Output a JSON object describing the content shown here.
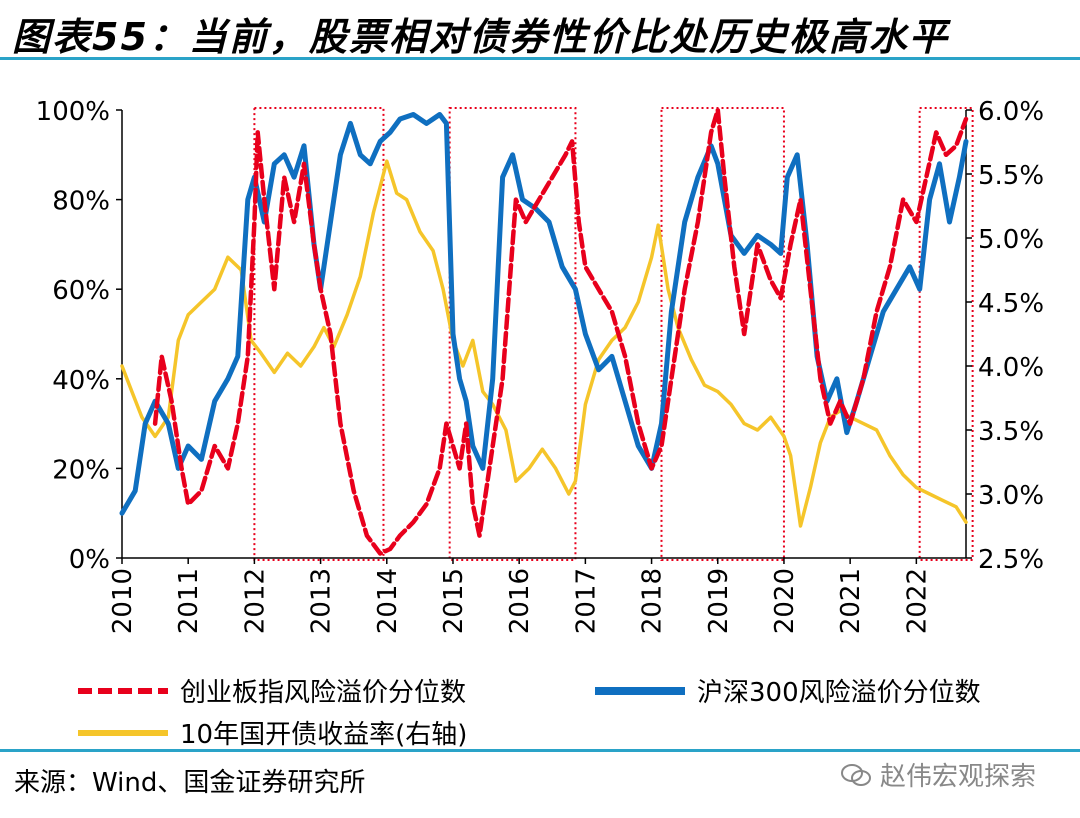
{
  "header": {
    "title": "图表55：当前，股票相对债券性价比处历史极高水平"
  },
  "source": "来源：Wind、国金证券研究所",
  "watermark": "赵伟宏观探索",
  "colors": {
    "red": "#e8001c",
    "blue": "#0f6fc0",
    "yellow": "#f5c52a",
    "box": "#e8001c"
  },
  "chart_data": {
    "type": "line",
    "x_ticks": [
      "2010",
      "2011",
      "2012",
      "2013",
      "2014",
      "2015",
      "2016",
      "2017",
      "2018",
      "2019",
      "2020",
      "2021",
      "2022"
    ],
    "y_left": {
      "ticks": [
        "0%",
        "20%",
        "40%",
        "60%",
        "80%",
        "100%"
      ],
      "range": [
        0,
        100
      ]
    },
    "y_right": {
      "ticks": [
        "2.5%",
        "3.0%",
        "3.5%",
        "4.0%",
        "4.5%",
        "5.0%",
        "5.5%",
        "6.0%"
      ],
      "range": [
        2.5,
        6.0
      ]
    },
    "x_range": [
      2010.0,
      2022.75
    ],
    "highlight_periods": [
      [
        2012.0,
        2013.95
      ],
      [
        2014.95,
        2016.85
      ],
      [
        2018.15,
        2020.0
      ],
      [
        2022.05,
        2022.85
      ]
    ],
    "series": [
      {
        "name": "创业板指风险溢价分位数",
        "axis": "left",
        "style": "dashed",
        "points": [
          [
            2010.5,
            30
          ],
          [
            2010.6,
            45
          ],
          [
            2010.75,
            35
          ],
          [
            2010.9,
            20
          ],
          [
            2011.0,
            12
          ],
          [
            2011.2,
            15
          ],
          [
            2011.4,
            25
          ],
          [
            2011.6,
            20
          ],
          [
            2011.75,
            30
          ],
          [
            2011.9,
            45
          ],
          [
            2012.0,
            75
          ],
          [
            2012.05,
            95
          ],
          [
            2012.15,
            80
          ],
          [
            2012.3,
            60
          ],
          [
            2012.45,
            85
          ],
          [
            2012.6,
            75
          ],
          [
            2012.75,
            88
          ],
          [
            2012.9,
            70
          ],
          [
            2013.0,
            60
          ],
          [
            2013.15,
            50
          ],
          [
            2013.3,
            30
          ],
          [
            2013.5,
            15
          ],
          [
            2013.7,
            5
          ],
          [
            2013.9,
            1
          ],
          [
            2014.05,
            2
          ],
          [
            2014.2,
            5
          ],
          [
            2014.4,
            8
          ],
          [
            2014.6,
            12
          ],
          [
            2014.8,
            20
          ],
          [
            2014.9,
            30
          ],
          [
            2015.0,
            25
          ],
          [
            2015.1,
            20
          ],
          [
            2015.2,
            30
          ],
          [
            2015.3,
            12
          ],
          [
            2015.4,
            5
          ],
          [
            2015.5,
            15
          ],
          [
            2015.6,
            25
          ],
          [
            2015.75,
            40
          ],
          [
            2015.85,
            60
          ],
          [
            2015.95,
            80
          ],
          [
            2016.1,
            75
          ],
          [
            2016.3,
            80
          ],
          [
            2016.5,
            85
          ],
          [
            2016.7,
            90
          ],
          [
            2016.8,
            93
          ],
          [
            2016.9,
            75
          ],
          [
            2017.0,
            65
          ],
          [
            2017.2,
            60
          ],
          [
            2017.4,
            55
          ],
          [
            2017.6,
            45
          ],
          [
            2017.8,
            30
          ],
          [
            2018.0,
            20
          ],
          [
            2018.15,
            25
          ],
          [
            2018.3,
            40
          ],
          [
            2018.5,
            60
          ],
          [
            2018.7,
            75
          ],
          [
            2018.9,
            95
          ],
          [
            2019.0,
            100
          ],
          [
            2019.1,
            85
          ],
          [
            2019.25,
            65
          ],
          [
            2019.4,
            50
          ],
          [
            2019.6,
            70
          ],
          [
            2019.8,
            62
          ],
          [
            2019.95,
            58
          ],
          [
            2020.1,
            70
          ],
          [
            2020.25,
            80
          ],
          [
            2020.4,
            60
          ],
          [
            2020.55,
            40
          ],
          [
            2020.7,
            30
          ],
          [
            2020.85,
            35
          ],
          [
            2021.0,
            30
          ],
          [
            2021.2,
            40
          ],
          [
            2021.4,
            55
          ],
          [
            2021.6,
            65
          ],
          [
            2021.8,
            80
          ],
          [
            2022.0,
            75
          ],
          [
            2022.15,
            85
          ],
          [
            2022.3,
            95
          ],
          [
            2022.45,
            90
          ],
          [
            2022.6,
            92
          ],
          [
            2022.75,
            98
          ]
        ]
      },
      {
        "name": "沪深300风险溢价分位数",
        "axis": "left",
        "style": "solid",
        "points": [
          [
            2010.0,
            10
          ],
          [
            2010.2,
            15
          ],
          [
            2010.35,
            30
          ],
          [
            2010.5,
            35
          ],
          [
            2010.7,
            30
          ],
          [
            2010.85,
            20
          ],
          [
            2011.0,
            25
          ],
          [
            2011.2,
            22
          ],
          [
            2011.4,
            35
          ],
          [
            2011.6,
            40
          ],
          [
            2011.75,
            45
          ],
          [
            2011.9,
            80
          ],
          [
            2012.0,
            85
          ],
          [
            2012.15,
            75
          ],
          [
            2012.3,
            88
          ],
          [
            2012.45,
            90
          ],
          [
            2012.6,
            85
          ],
          [
            2012.75,
            92
          ],
          [
            2012.9,
            70
          ],
          [
            2013.0,
            60
          ],
          [
            2013.15,
            75
          ],
          [
            2013.3,
            90
          ],
          [
            2013.45,
            97
          ],
          [
            2013.6,
            90
          ],
          [
            2013.75,
            88
          ],
          [
            2013.9,
            93
          ],
          [
            2014.05,
            95
          ],
          [
            2014.2,
            98
          ],
          [
            2014.4,
            99
          ],
          [
            2014.6,
            97
          ],
          [
            2014.8,
            99
          ],
          [
            2014.9,
            97
          ],
          [
            2015.0,
            50
          ],
          [
            2015.1,
            40
          ],
          [
            2015.2,
            35
          ],
          [
            2015.3,
            25
          ],
          [
            2015.45,
            20
          ],
          [
            2015.6,
            40
          ],
          [
            2015.75,
            85
          ],
          [
            2015.9,
            90
          ],
          [
            2016.05,
            80
          ],
          [
            2016.25,
            78
          ],
          [
            2016.45,
            75
          ],
          [
            2016.65,
            65
          ],
          [
            2016.85,
            60
          ],
          [
            2017.0,
            50
          ],
          [
            2017.2,
            42
          ],
          [
            2017.4,
            45
          ],
          [
            2017.6,
            35
          ],
          [
            2017.8,
            25
          ],
          [
            2018.0,
            20
          ],
          [
            2018.15,
            30
          ],
          [
            2018.3,
            55
          ],
          [
            2018.5,
            75
          ],
          [
            2018.7,
            85
          ],
          [
            2018.9,
            92
          ],
          [
            2019.0,
            88
          ],
          [
            2019.2,
            72
          ],
          [
            2019.4,
            68
          ],
          [
            2019.6,
            72
          ],
          [
            2019.8,
            70
          ],
          [
            2019.95,
            68
          ],
          [
            2020.05,
            85
          ],
          [
            2020.2,
            90
          ],
          [
            2020.35,
            70
          ],
          [
            2020.5,
            45
          ],
          [
            2020.65,
            35
          ],
          [
            2020.8,
            40
          ],
          [
            2020.95,
            28
          ],
          [
            2021.1,
            35
          ],
          [
            2021.3,
            45
          ],
          [
            2021.5,
            55
          ],
          [
            2021.7,
            60
          ],
          [
            2021.9,
            65
          ],
          [
            2022.05,
            60
          ],
          [
            2022.2,
            80
          ],
          [
            2022.35,
            88
          ],
          [
            2022.5,
            75
          ],
          [
            2022.65,
            85
          ],
          [
            2022.75,
            93
          ]
        ]
      },
      {
        "name": "10年国开债收益率(右轴)",
        "axis": "right",
        "style": "solid",
        "points": [
          [
            2010.0,
            4.0
          ],
          [
            2010.15,
            3.8
          ],
          [
            2010.3,
            3.6
          ],
          [
            2010.5,
            3.45
          ],
          [
            2010.7,
            3.6
          ],
          [
            2010.85,
            4.2
          ],
          [
            2011.0,
            4.4
          ],
          [
            2011.2,
            4.5
          ],
          [
            2011.4,
            4.6
          ],
          [
            2011.6,
            4.85
          ],
          [
            2011.8,
            4.75
          ],
          [
            2011.95,
            4.2
          ],
          [
            2012.1,
            4.1
          ],
          [
            2012.3,
            3.95
          ],
          [
            2012.5,
            4.1
          ],
          [
            2012.7,
            4.0
          ],
          [
            2012.9,
            4.15
          ],
          [
            2013.05,
            4.3
          ],
          [
            2013.2,
            4.15
          ],
          [
            2013.4,
            4.4
          ],
          [
            2013.6,
            4.7
          ],
          [
            2013.8,
            5.2
          ],
          [
            2014.0,
            5.6
          ],
          [
            2014.15,
            5.35
          ],
          [
            2014.3,
            5.3
          ],
          [
            2014.5,
            5.05
          ],
          [
            2014.7,
            4.9
          ],
          [
            2014.85,
            4.6
          ],
          [
            2015.0,
            4.2
          ],
          [
            2015.15,
            4.0
          ],
          [
            2015.3,
            4.2
          ],
          [
            2015.45,
            3.8
          ],
          [
            2015.6,
            3.7
          ],
          [
            2015.8,
            3.5
          ],
          [
            2015.95,
            3.1
          ],
          [
            2016.15,
            3.2
          ],
          [
            2016.35,
            3.35
          ],
          [
            2016.55,
            3.2
          ],
          [
            2016.75,
            3.0
          ],
          [
            2016.85,
            3.1
          ],
          [
            2017.0,
            3.7
          ],
          [
            2017.2,
            4.05
          ],
          [
            2017.4,
            4.2
          ],
          [
            2017.6,
            4.3
          ],
          [
            2017.8,
            4.5
          ],
          [
            2018.0,
            4.85
          ],
          [
            2018.1,
            5.1
          ],
          [
            2018.25,
            4.6
          ],
          [
            2018.4,
            4.3
          ],
          [
            2018.6,
            4.05
          ],
          [
            2018.8,
            3.85
          ],
          [
            2019.0,
            3.8
          ],
          [
            2019.2,
            3.7
          ],
          [
            2019.4,
            3.55
          ],
          [
            2019.6,
            3.5
          ],
          [
            2019.8,
            3.6
          ],
          [
            2020.0,
            3.45
          ],
          [
            2020.1,
            3.3
          ],
          [
            2020.25,
            2.75
          ],
          [
            2020.4,
            3.05
          ],
          [
            2020.55,
            3.4
          ],
          [
            2020.7,
            3.6
          ],
          [
            2020.85,
            3.65
          ],
          [
            2021.0,
            3.6
          ],
          [
            2021.2,
            3.55
          ],
          [
            2021.4,
            3.5
          ],
          [
            2021.6,
            3.3
          ],
          [
            2021.8,
            3.15
          ],
          [
            2022.0,
            3.05
          ],
          [
            2022.2,
            3.0
          ],
          [
            2022.4,
            2.95
          ],
          [
            2022.6,
            2.9
          ],
          [
            2022.75,
            2.78
          ]
        ]
      }
    ]
  }
}
